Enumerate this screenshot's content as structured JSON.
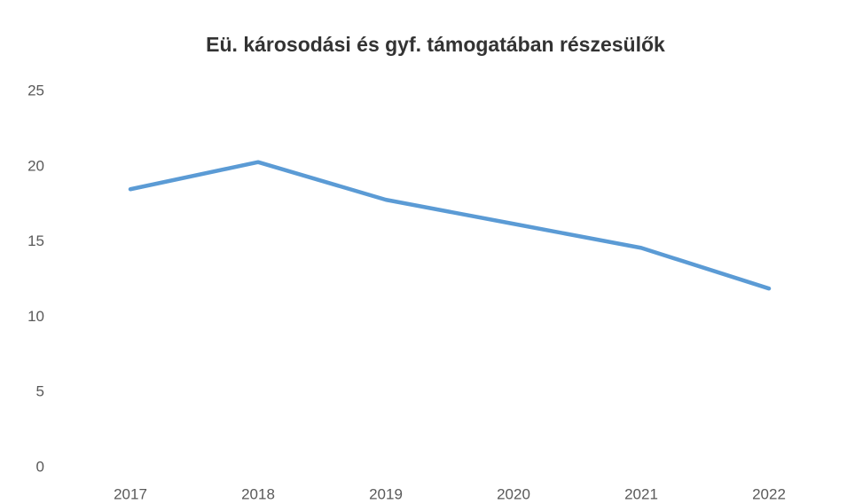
{
  "chart_data": {
    "type": "line",
    "title": "Eü. károsodási és gyf. támogatában részesülők",
    "categories": [
      "2017",
      "2018",
      "2019",
      "2020",
      "2021",
      "2022"
    ],
    "values": [
      18.5,
      20.3,
      17.8,
      16.2,
      14.6,
      11.9
    ],
    "color": "#5b9bd5",
    "ylim": [
      0,
      25
    ],
    "yticks": [
      0,
      5,
      10,
      15,
      20,
      25
    ],
    "grid": false
  }
}
